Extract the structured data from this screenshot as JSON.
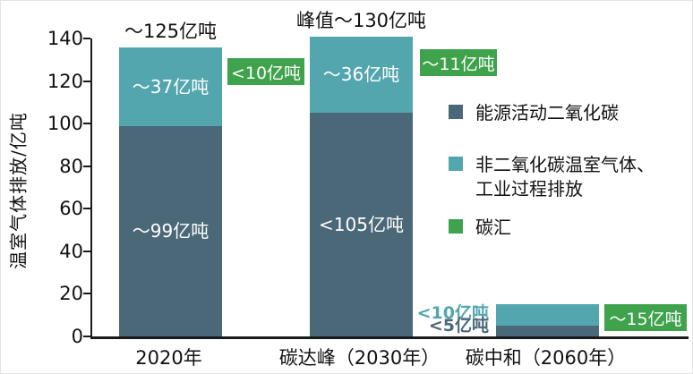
{
  "chart_data": {
    "type": "bar",
    "stacked": true,
    "ylabel": "温室气体排放/亿吨",
    "ylim": [
      0,
      140
    ],
    "yticks": [
      "0",
      "20",
      "40",
      "60",
      "80",
      "100",
      "120",
      "140"
    ],
    "grid": false,
    "legend_position": "right",
    "categories": [
      "2020年",
      "碳达峰（2030年）",
      "碳中和（2060年）"
    ],
    "series": [
      {
        "name": "能源活动二氧化碳",
        "color": "#4b6878",
        "values": [
          99,
          105,
          5
        ],
        "value_labels": [
          "～99亿吨",
          "<105亿吨",
          "<5亿吨"
        ]
      },
      {
        "name": "非二氧化碳温室气体、工业过程排放",
        "color": "#53a6ad",
        "values": [
          37,
          36,
          10
        ],
        "value_labels": [
          "～37亿吨",
          "～36亿吨",
          "<10亿吨"
        ]
      },
      {
        "name": "碳汇",
        "color": "#3fa24c",
        "values": [
          10,
          11,
          15
        ],
        "value_labels": [
          "<10亿吨",
          "～11亿吨",
          "～15亿吨"
        ]
      }
    ],
    "bar_totals": [
      "～125亿吨",
      "峰值～130亿吨",
      ""
    ],
    "legend": [
      "能源活动二氧化碳",
      "非二氧化碳温室气体、工业过程排放",
      "碳汇"
    ]
  }
}
